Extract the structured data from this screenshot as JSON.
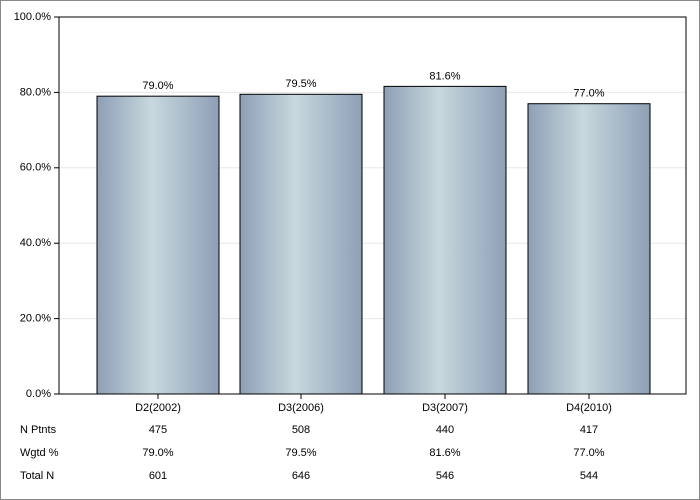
{
  "chart_data": {
    "type": "bar",
    "categories": [
      "D2(2002)",
      "D3(2006)",
      "D3(2007)",
      "D4(2010)"
    ],
    "values": [
      79.0,
      79.5,
      81.6,
      77.0
    ],
    "value_labels": [
      "79.0%",
      "79.5%",
      "81.6%",
      "77.0%"
    ],
    "color": "#8e9fb6",
    "ylim": [
      0,
      100
    ],
    "yticks": [
      {
        "value": 0,
        "label": "0.0%"
      },
      {
        "value": 20,
        "label": "20.0%"
      },
      {
        "value": 40,
        "label": "40.0%"
      },
      {
        "value": 60,
        "label": "60.0%"
      },
      {
        "value": 80,
        "label": "80.0%"
      },
      {
        "value": 100,
        "label": "100.0%"
      }
    ],
    "grid": true,
    "table": [
      {
        "label": "N Ptnts",
        "values": [
          475,
          508,
          440,
          417
        ]
      },
      {
        "label": "Wgtd %",
        "values": [
          "79.0%",
          "79.5%",
          "81.6%",
          "77.0%"
        ]
      },
      {
        "label": "Total N",
        "values": [
          601,
          646,
          546,
          544
        ]
      }
    ]
  }
}
